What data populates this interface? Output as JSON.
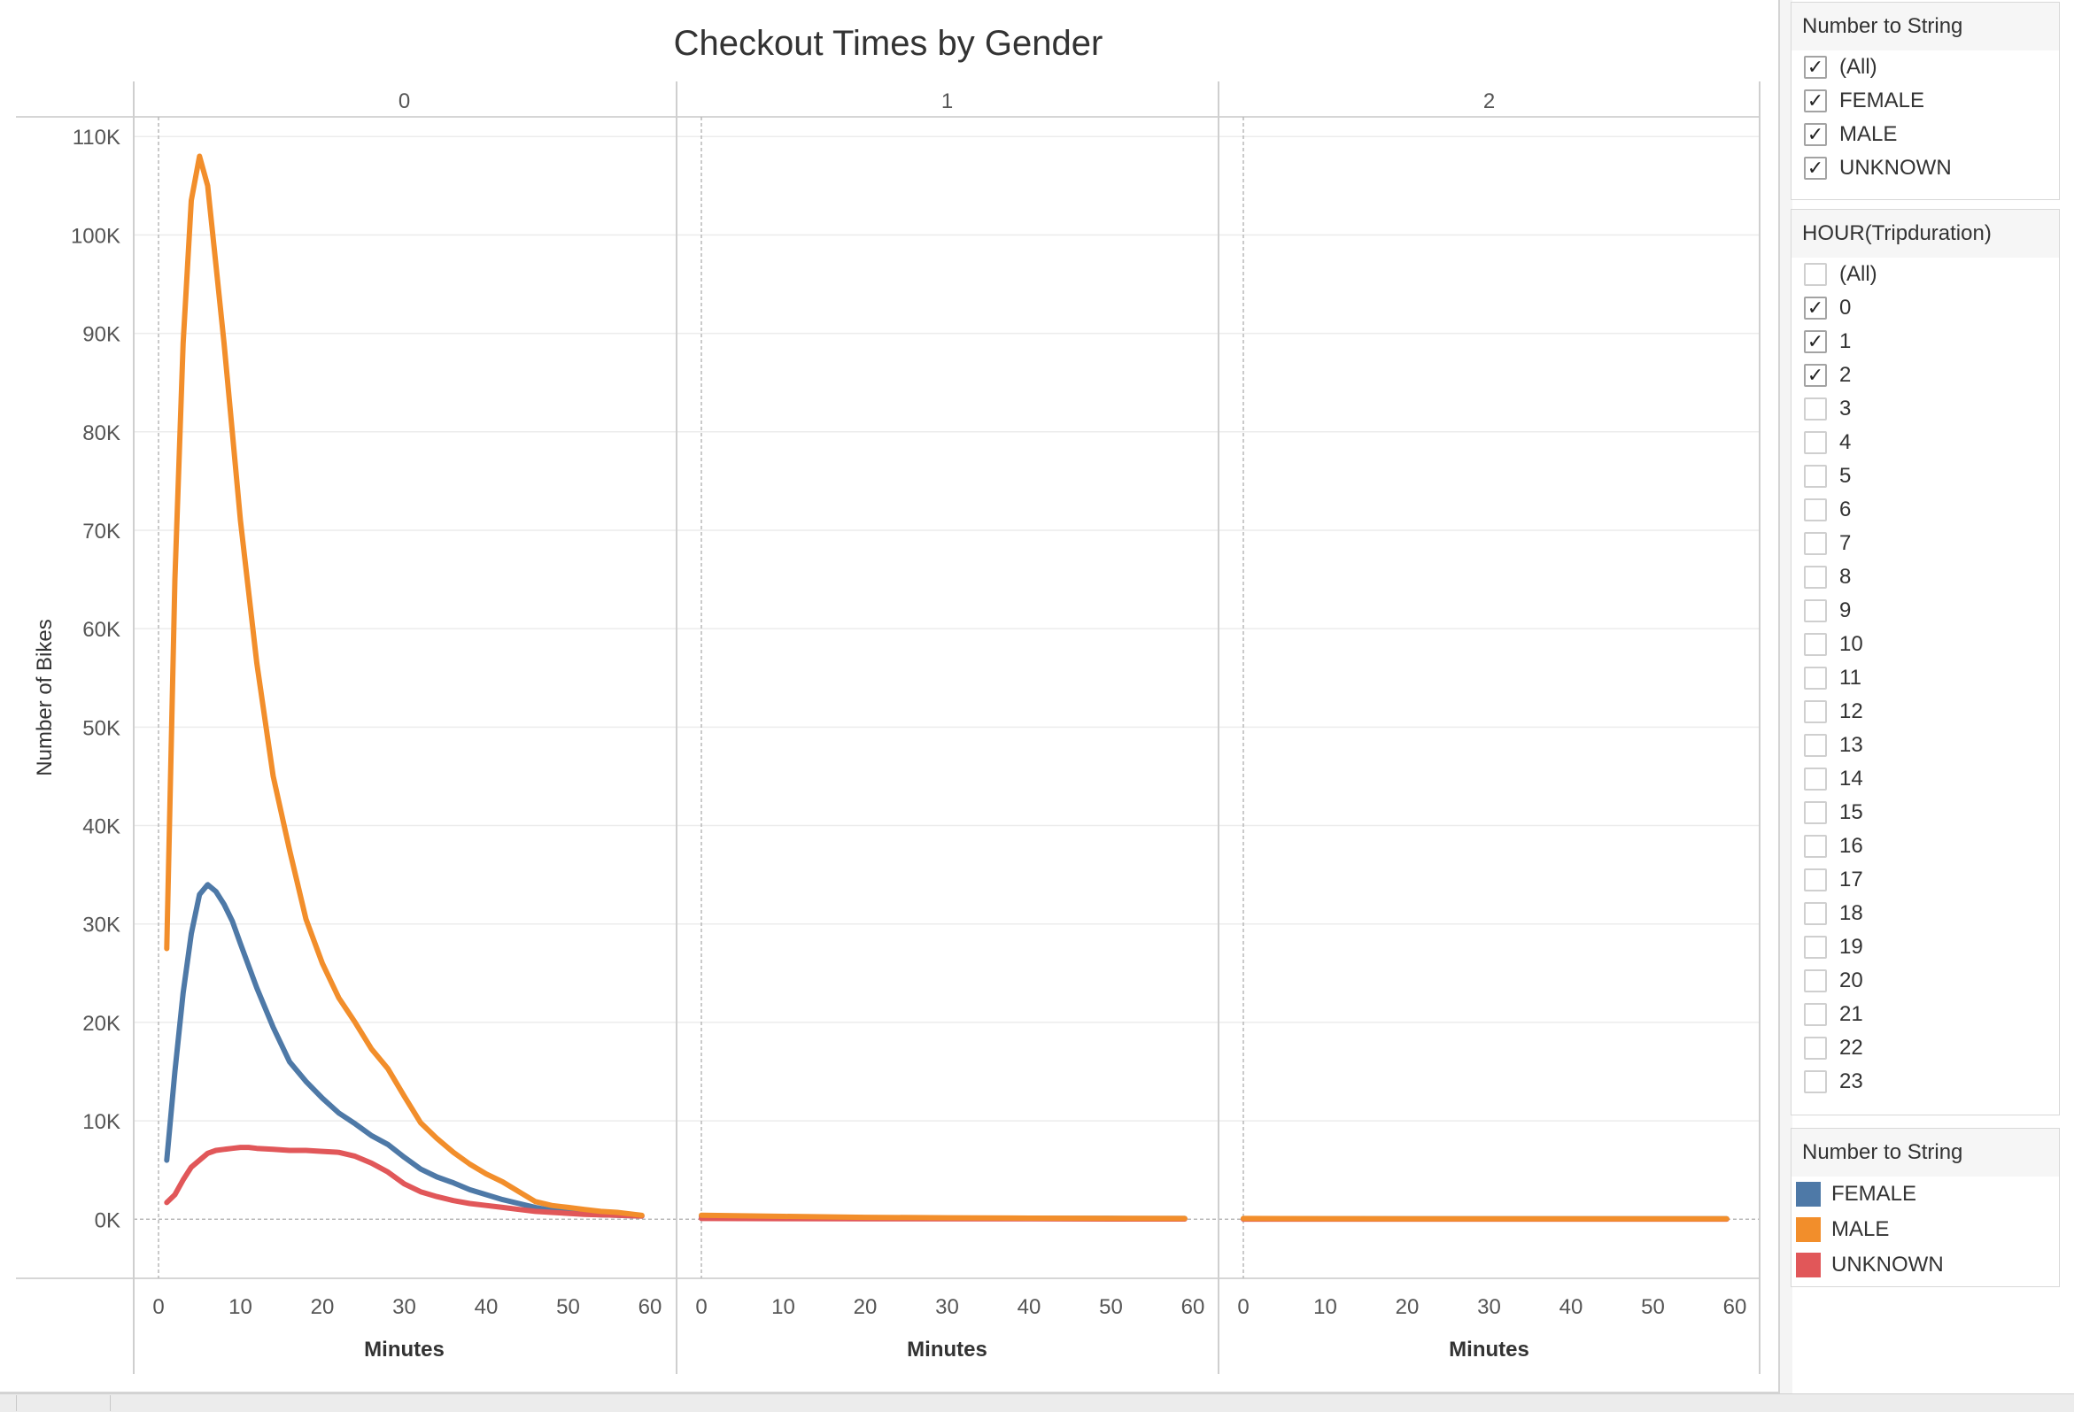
{
  "chart_data": {
    "type": "line",
    "title": "Checkout Times by Gender",
    "xlabel": "Minutes",
    "ylabel": "Number of Bikes",
    "panels": [
      {
        "label": "0"
      },
      {
        "label": "1"
      },
      {
        "label": "2"
      }
    ],
    "xlim": [
      0,
      60
    ],
    "x_ticks": [
      "0",
      "10",
      "20",
      "30",
      "40",
      "50",
      "60"
    ],
    "ylim": [
      -6000,
      112000
    ],
    "y_ticks": [
      {
        "value": 110000,
        "label": "110K"
      },
      {
        "value": 100000,
        "label": "100K"
      },
      {
        "value": 90000,
        "label": "90K"
      },
      {
        "value": 80000,
        "label": "80K"
      },
      {
        "value": 70000,
        "label": "70K"
      },
      {
        "value": 60000,
        "label": "60K"
      },
      {
        "value": 50000,
        "label": "50K"
      },
      {
        "value": 40000,
        "label": "40K"
      },
      {
        "value": 30000,
        "label": "30K"
      },
      {
        "value": 20000,
        "label": "20K"
      },
      {
        "value": 10000,
        "label": "10K"
      },
      {
        "value": 0,
        "label": "0K"
      }
    ],
    "grid": true,
    "legend_position": "right",
    "series": [
      {
        "name": "FEMALE",
        "color": "#4e79a7",
        "panels": [
          {
            "x": [
              1,
              2,
              3,
              4,
              5,
              6,
              7,
              8,
              9,
              10,
              12,
              14,
              16,
              18,
              20,
              22,
              24,
              26,
              28,
              30,
              32,
              34,
              36,
              38,
              40,
              42,
              44,
              46,
              48,
              50,
              52,
              54,
              56,
              58,
              59
            ],
            "y": [
              6000,
              15000,
              23000,
              29000,
              33000,
              34000,
              33300,
              32000,
              30300,
              28000,
              23500,
              19500,
              16000,
              14000,
              12300,
              10800,
              9700,
              8500,
              7600,
              6300,
              5100,
              4300,
              3700,
              3000,
              2500,
              2000,
              1600,
              1200,
              900,
              700,
              550,
              450,
              400,
              350,
              330
            ]
          },
          {
            "x": [
              0,
              10,
              20,
              30,
              40,
              50,
              59
            ],
            "y": [
              300,
              200,
              150,
              120,
              100,
              90,
              80
            ]
          },
          {
            "x": [
              0,
              10,
              20,
              30,
              40,
              50,
              59
            ],
            "y": [
              60,
              50,
              40,
              40,
              40,
              40,
              40
            ]
          }
        ]
      },
      {
        "name": "MALE",
        "color": "#f28e2b",
        "panels": [
          {
            "x": [
              1,
              2,
              3,
              4,
              5,
              6,
              7,
              8,
              9,
              10,
              12,
              14,
              16,
              18,
              20,
              22,
              24,
              26,
              28,
              30,
              32,
              34,
              36,
              38,
              40,
              42,
              44,
              46,
              48,
              50,
              52,
              54,
              56,
              58,
              59
            ],
            "y": [
              27500,
              65000,
              89000,
              103500,
              108000,
              105000,
              97000,
              89000,
              80000,
              71000,
              56500,
              45000,
              37500,
              30500,
              26000,
              22500,
              20000,
              17300,
              15300,
              12500,
              9800,
              8200,
              6800,
              5600,
              4600,
              3800,
              2800,
              1800,
              1400,
              1200,
              1000,
              800,
              700,
              500,
              400
            ]
          },
          {
            "x": [
              0,
              10,
              20,
              30,
              40,
              50,
              59
            ],
            "y": [
              400,
              300,
              200,
              150,
              120,
              100,
              80
            ]
          },
          {
            "x": [
              0,
              10,
              20,
              30,
              40,
              50,
              59
            ],
            "y": [
              80,
              60,
              50,
              50,
              40,
              40,
              40
            ]
          }
        ]
      },
      {
        "name": "UNKNOWN",
        "color": "#e15759",
        "panels": [
          {
            "x": [
              1,
              2,
              3,
              4,
              5,
              6,
              7,
              8,
              9,
              10,
              11,
              12,
              14,
              16,
              18,
              20,
              22,
              24,
              26,
              28,
              30,
              32,
              34,
              36,
              38,
              40,
              42,
              44,
              46,
              48,
              50,
              52,
              54,
              56,
              58,
              59
            ],
            "y": [
              1700,
              2500,
              4000,
              5300,
              6000,
              6700,
              7000,
              7100,
              7200,
              7300,
              7300,
              7200,
              7100,
              7000,
              7000,
              6900,
              6800,
              6400,
              5700,
              4800,
              3600,
              2800,
              2300,
              1900,
              1600,
              1400,
              1200,
              1000,
              800,
              700,
              600,
              500,
              450,
              400,
              350,
              330
            ]
          },
          {
            "x": [
              0,
              10,
              20,
              30,
              40,
              50,
              59
            ],
            "y": [
              80,
              60,
              50,
              40,
              40,
              30,
              30
            ]
          },
          {
            "x": [
              0,
              10,
              20,
              30,
              40,
              50,
              59
            ],
            "y": [
              20,
              20,
              20,
              20,
              20,
              20,
              20
            ]
          }
        ]
      }
    ]
  },
  "filters": {
    "gender_filter": {
      "title": "Number to String",
      "items": [
        {
          "label": "(All)",
          "checked": true
        },
        {
          "label": "FEMALE",
          "checked": true
        },
        {
          "label": "MALE",
          "checked": true
        },
        {
          "label": "UNKNOWN",
          "checked": true
        }
      ]
    },
    "hour_filter": {
      "title": "HOUR(Tripduration)",
      "items": [
        {
          "label": "(All)",
          "checked": false
        },
        {
          "label": "0",
          "checked": true
        },
        {
          "label": "1",
          "checked": true
        },
        {
          "label": "2",
          "checked": true
        },
        {
          "label": "3",
          "checked": false
        },
        {
          "label": "4",
          "checked": false
        },
        {
          "label": "5",
          "checked": false
        },
        {
          "label": "6",
          "checked": false
        },
        {
          "label": "7",
          "checked": false
        },
        {
          "label": "8",
          "checked": false
        },
        {
          "label": "9",
          "checked": false
        },
        {
          "label": "10",
          "checked": false
        },
        {
          "label": "11",
          "checked": false
        },
        {
          "label": "12",
          "checked": false
        },
        {
          "label": "13",
          "checked": false
        },
        {
          "label": "14",
          "checked": false
        },
        {
          "label": "15",
          "checked": false
        },
        {
          "label": "16",
          "checked": false
        },
        {
          "label": "17",
          "checked": false
        },
        {
          "label": "18",
          "checked": false
        },
        {
          "label": "19",
          "checked": false
        },
        {
          "label": "20",
          "checked": false
        },
        {
          "label": "21",
          "checked": false
        },
        {
          "label": "22",
          "checked": false
        },
        {
          "label": "23",
          "checked": false
        }
      ]
    }
  },
  "legend": {
    "title": "Number to String",
    "items": [
      {
        "label": "FEMALE",
        "color": "#4e79a7"
      },
      {
        "label": "MALE",
        "color": "#f28e2b"
      },
      {
        "label": "UNKNOWN",
        "color": "#e15759"
      }
    ]
  }
}
